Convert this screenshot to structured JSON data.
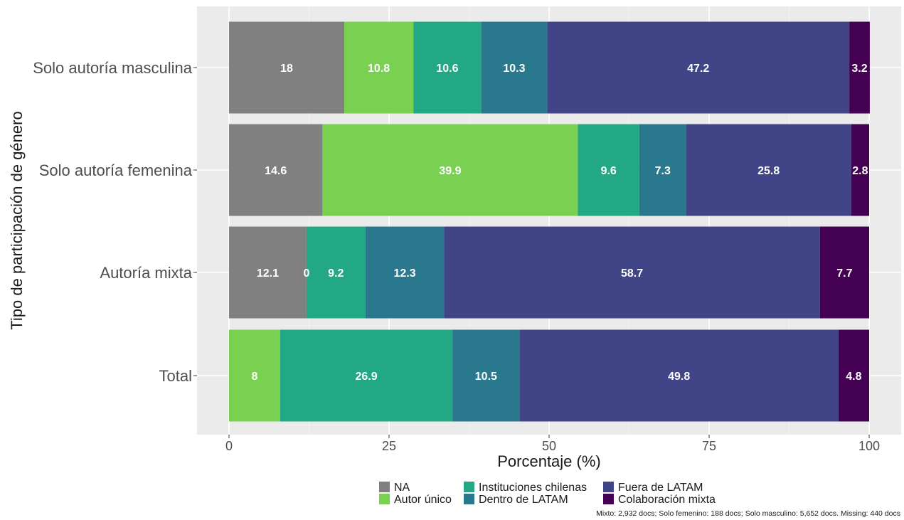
{
  "chart_data": {
    "type": "bar",
    "orientation": "horizontal",
    "stacked": true,
    "title": "",
    "xlabel": "Porcentaje (%)",
    "ylabel": "Tipo de participación de género",
    "xlim": [
      0,
      100
    ],
    "x_ticks": [
      "0",
      "25",
      "50",
      "75",
      "100"
    ],
    "grid": true,
    "legend_position": "bottom",
    "categories": [
      "Solo autoría masculina",
      "Solo autoría femenina",
      "Autoría mixta",
      "Total"
    ],
    "series": [
      {
        "name": "NA",
        "color": "#808080",
        "values": [
          18,
          14.6,
          12.1,
          0
        ],
        "labels": [
          "18",
          "14.6",
          "12.1",
          ""
        ]
      },
      {
        "name": "Autor único",
        "color": "#7ad151",
        "values": [
          10.8,
          39.9,
          0,
          8
        ],
        "labels": [
          "10.8",
          "39.9",
          "0",
          "8"
        ]
      },
      {
        "name": "Instituciones chilenas",
        "color": "#22a884",
        "values": [
          10.6,
          9.6,
          9.2,
          26.9
        ],
        "labels": [
          "10.6",
          "9.6",
          "9.2",
          "26.9"
        ]
      },
      {
        "name": "Dentro de LATAM",
        "color": "#2a788e",
        "values": [
          10.3,
          7.3,
          12.3,
          10.5
        ],
        "labels": [
          "10.3",
          "7.3",
          "12.3",
          "10.5"
        ]
      },
      {
        "name": "Fuera de LATAM",
        "color": "#414487",
        "values": [
          47.2,
          25.8,
          58.7,
          49.8
        ],
        "labels": [
          "47.2",
          "25.8",
          "58.7",
          "49.8"
        ]
      },
      {
        "name": "Colaboración mixta",
        "color": "#440154",
        "values": [
          3.2,
          2.8,
          7.7,
          4.8
        ],
        "labels": [
          "3.2",
          "2.8",
          "7.7",
          "4.8"
        ]
      }
    ],
    "caption": "Mixto: 2,932 docs; Solo femenino: 188 docs; Solo masculino: 5,652 docs. Missing: 440 docs"
  }
}
